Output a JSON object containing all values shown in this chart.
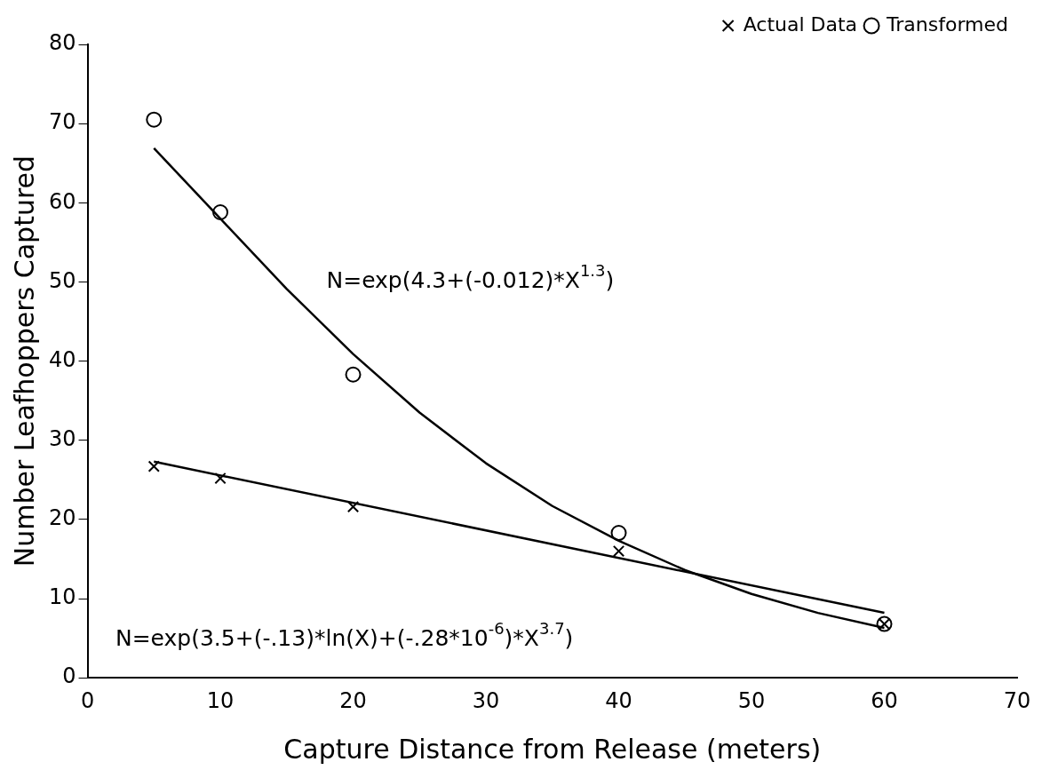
{
  "chart_data": {
    "type": "scatter",
    "xlabel": "Capture Distance from Release (meters)",
    "ylabel": "Number Leafhoppers Captured",
    "xlim": [
      0,
      70
    ],
    "xticks": [
      0,
      10,
      20,
      30,
      40,
      50,
      60,
      70
    ],
    "ylim": [
      0,
      80
    ],
    "yticks": [
      0,
      10,
      20,
      30,
      40,
      50,
      60,
      70,
      80
    ],
    "grid": false,
    "legend": "top right",
    "series": [
      {
        "name": "Actual Data",
        "marker": "cross",
        "color": "#000000",
        "x": [
          5,
          10,
          20,
          40,
          60
        ],
        "values": [
          26.7,
          25.2,
          21.6,
          16,
          6.8
        ]
      },
      {
        "name": "Transformed",
        "marker": "circle",
        "color": "#000000",
        "x": [
          5,
          10,
          20,
          40,
          60
        ],
        "values": [
          70.5,
          58.8,
          38.3,
          18.3,
          6.8
        ]
      },
      {
        "type": "line",
        "marker": "none",
        "line_style": "solid",
        "color": "#000000",
        "x": [
          5,
          10,
          15,
          20,
          25,
          30,
          35,
          40,
          45,
          50,
          55,
          60
        ],
        "values": [
          66.9,
          58.0,
          49.1,
          40.9,
          33.5,
          27.1,
          21.7,
          17.3,
          13.6,
          10.6,
          8.2,
          6.3
        ]
      },
      {
        "type": "line",
        "marker": "none",
        "line_style": "solid",
        "color": "#000000",
        "x": [
          5,
          60
        ],
        "values": [
          27.3,
          8.2
        ]
      }
    ],
    "annotations": [
      "N=exp(4.3+(-0.012)*X$^{1.3}$)",
      "N=exp(3.5+(-.13)*ln(X)+(-.28*10$^{-6}$)*X$^{3.7}$)"
    ]
  }
}
